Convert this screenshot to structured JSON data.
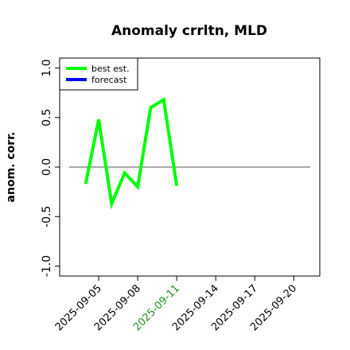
{
  "chart_data": {
    "type": "line",
    "title": "Anomaly crrltn, MLD",
    "ylabel": "anom. corr.",
    "x": [
      "2025-09-04",
      "2025-09-05",
      "2025-09-06",
      "2025-09-07",
      "2025-09-08",
      "2025-09-09",
      "2025-09-10",
      "2025-09-11"
    ],
    "series": [
      {
        "name": "best est.",
        "color": "#00ff00",
        "values": [
          -0.17,
          0.48,
          -0.37,
          -0.06,
          -0.2,
          0.6,
          0.68,
          -0.19
        ]
      },
      {
        "name": "forecast",
        "color": "#0000ff",
        "values": [
          null,
          null,
          null,
          null,
          null,
          null,
          null,
          null
        ]
      }
    ],
    "xlim": [
      "2025-09-02",
      "2025-09-22"
    ],
    "xticks": [
      "2025-09-05",
      "2025-09-08",
      "2025-09-11",
      "2025-09-14",
      "2025-09-17",
      "2025-09-20"
    ],
    "xtick_colors": [
      "#000000",
      "#000000",
      "#228b22",
      "#000000",
      "#000000",
      "#000000"
    ],
    "ylim": [
      -1.1,
      1.1
    ],
    "yticks": [
      {
        "value": -1,
        "label": "-1.0"
      },
      {
        "value": -0.5,
        "label": "-0.5"
      },
      {
        "value": 0,
        "label": "0.0"
      },
      {
        "value": 0.5,
        "label": "0.5"
      },
      {
        "value": 1,
        "label": "1.0"
      }
    ],
    "hline": 0,
    "legend": "top-left"
  }
}
